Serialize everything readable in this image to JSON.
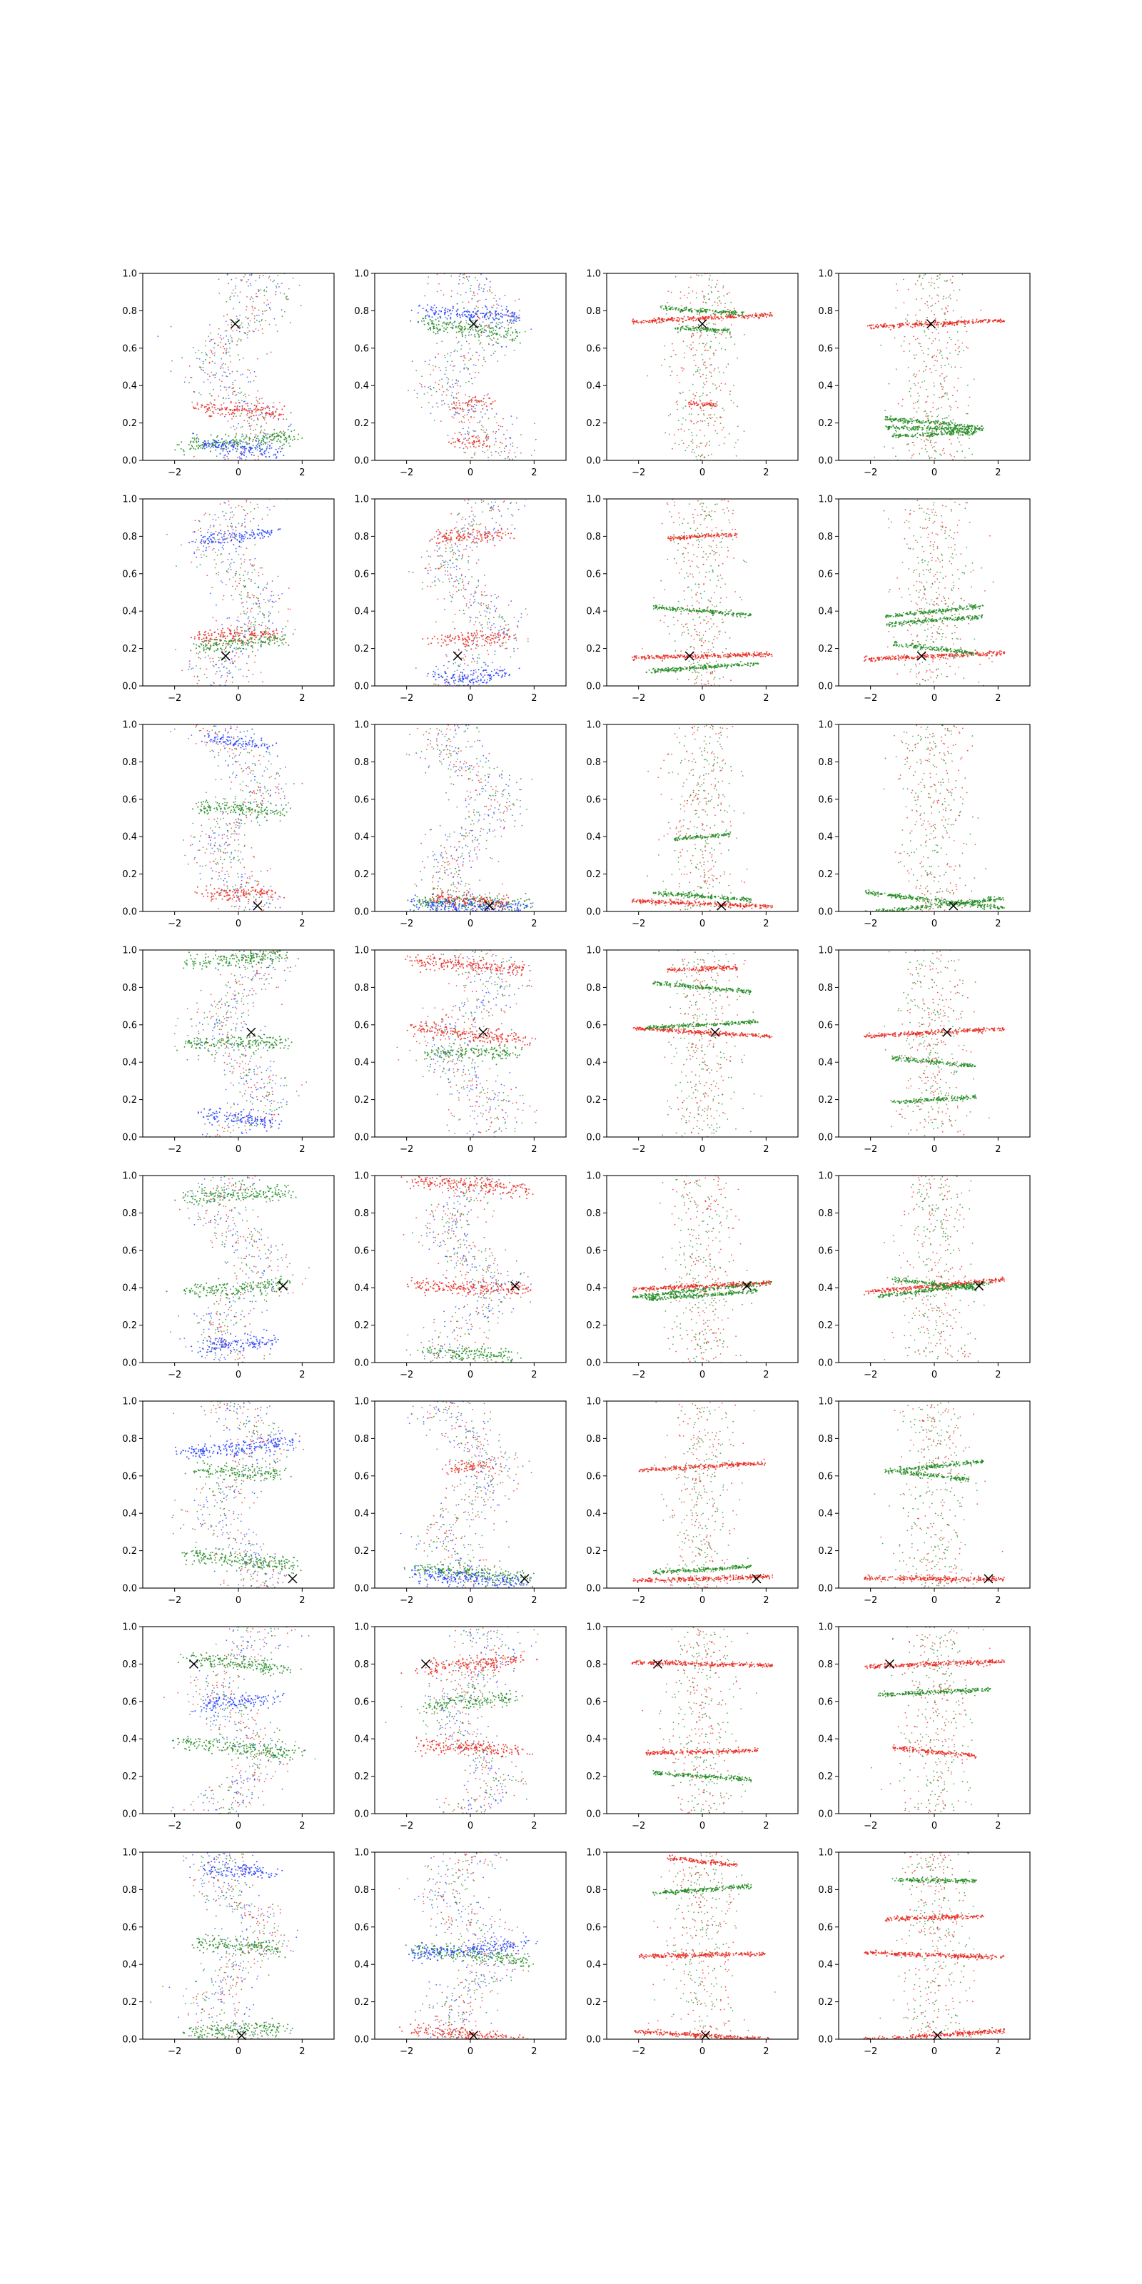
{
  "figure": {
    "rows": 8,
    "cols": 4,
    "colors": {
      "red": "#e8261c",
      "green": "#1f8a1f",
      "blue": "#1f3cff",
      "marker": "#000000"
    }
  },
  "chart_data": {
    "type": "scatter",
    "xlim": [
      -3,
      3
    ],
    "ylim": [
      0,
      1
    ],
    "x_ticks": [
      -2,
      0,
      2
    ],
    "y_ticks": [
      0.0,
      0.2,
      0.4,
      0.6,
      0.8,
      1.0
    ],
    "x_tick_labels": [
      "−2",
      "0",
      "2"
    ],
    "y_tick_labels": [
      "0.0",
      "0.2",
      "0.4",
      "0.6",
      "0.8",
      "1.0"
    ],
    "grid": false,
    "legend": "none",
    "panels": [
      {
        "row": 0,
        "col": 0,
        "kind": "spread",
        "marker": [
          -0.1,
          0.73
        ],
        "bands": [
          [
            0.27,
            0.6,
            "red"
          ],
          [
            0.1,
            0.8,
            "green"
          ],
          [
            0.07,
            0.55,
            "blue"
          ]
        ]
      },
      {
        "row": 0,
        "col": 1,
        "kind": "spread",
        "marker": [
          0.1,
          0.73
        ],
        "bands": [
          [
            0.78,
            0.7,
            "blue"
          ],
          [
            0.7,
            0.7,
            "green"
          ],
          [
            0.3,
            0.2,
            "red"
          ],
          [
            0.1,
            0.2,
            "red"
          ]
        ]
      },
      {
        "row": 0,
        "col": 2,
        "kind": "stripes",
        "marker": [
          0.0,
          0.73
        ],
        "bands": [
          [
            0.76,
            1.0,
            "red"
          ],
          [
            0.8,
            0.6,
            "green"
          ],
          [
            0.7,
            0.4,
            "green"
          ],
          [
            0.3,
            0.2,
            "red"
          ]
        ]
      },
      {
        "row": 0,
        "col": 3,
        "kind": "stripes",
        "marker": [
          -0.1,
          0.73
        ],
        "bands": [
          [
            0.73,
            1.0,
            "red"
          ],
          [
            0.2,
            0.7,
            "green"
          ],
          [
            0.17,
            0.7,
            "green"
          ],
          [
            0.14,
            0.6,
            "green"
          ]
        ]
      },
      {
        "row": 1,
        "col": 0,
        "kind": "spread",
        "marker": [
          -0.4,
          0.16
        ],
        "bands": [
          [
            0.27,
            0.6,
            "red"
          ],
          [
            0.23,
            0.6,
            "green"
          ],
          [
            0.8,
            0.5,
            "blue"
          ]
        ]
      },
      {
        "row": 1,
        "col": 1,
        "kind": "spread",
        "marker": [
          -0.4,
          0.16
        ],
        "bands": [
          [
            0.8,
            0.5,
            "red"
          ],
          [
            0.25,
            0.5,
            "red"
          ],
          [
            0.05,
            0.5,
            "blue"
          ]
        ]
      },
      {
        "row": 1,
        "col": 2,
        "kind": "stripes",
        "marker": [
          -0.4,
          0.16
        ],
        "bands": [
          [
            0.16,
            1.0,
            "red"
          ],
          [
            0.1,
            0.8,
            "green"
          ],
          [
            0.4,
            0.7,
            "green"
          ],
          [
            0.8,
            0.5,
            "red"
          ]
        ]
      },
      {
        "row": 1,
        "col": 3,
        "kind": "stripes",
        "marker": [
          -0.4,
          0.16
        ],
        "bands": [
          [
            0.16,
            1.0,
            "red"
          ],
          [
            0.35,
            0.7,
            "green"
          ],
          [
            0.4,
            0.7,
            "green"
          ],
          [
            0.2,
            0.6,
            "green"
          ]
        ]
      },
      {
        "row": 2,
        "col": 0,
        "kind": "spread",
        "marker": [
          0.6,
          0.03
        ],
        "bands": [
          [
            0.55,
            0.6,
            "green"
          ],
          [
            0.1,
            0.5,
            "red"
          ],
          [
            0.9,
            0.4,
            "blue"
          ]
        ]
      },
      {
        "row": 2,
        "col": 1,
        "kind": "spread",
        "marker": [
          0.6,
          0.03
        ],
        "bands": [
          [
            0.05,
            0.8,
            "green"
          ],
          [
            0.03,
            0.8,
            "blue"
          ],
          [
            0.06,
            0.5,
            "red"
          ]
        ]
      },
      {
        "row": 2,
        "col": 2,
        "kind": "stripes",
        "marker": [
          0.6,
          0.03
        ],
        "bands": [
          [
            0.04,
            1.0,
            "red"
          ],
          [
            0.08,
            0.7,
            "green"
          ],
          [
            0.4,
            0.4,
            "green"
          ]
        ]
      },
      {
        "row": 2,
        "col": 3,
        "kind": "stripes",
        "marker": [
          0.6,
          0.03
        ],
        "bands": [
          [
            0.06,
            1.0,
            "green"
          ],
          [
            0.03,
            1.0,
            "green"
          ]
        ]
      },
      {
        "row": 3,
        "col": 0,
        "kind": "spread",
        "marker": [
          0.4,
          0.56
        ],
        "bands": [
          [
            0.95,
            0.7,
            "green"
          ],
          [
            0.5,
            0.7,
            "green"
          ],
          [
            0.1,
            0.5,
            "blue"
          ]
        ]
      },
      {
        "row": 3,
        "col": 1,
        "kind": "spread",
        "marker": [
          0.4,
          0.56
        ],
        "bands": [
          [
            0.92,
            0.8,
            "red"
          ],
          [
            0.55,
            0.8,
            "red"
          ],
          [
            0.45,
            0.6,
            "green"
          ]
        ]
      },
      {
        "row": 3,
        "col": 2,
        "kind": "stripes",
        "marker": [
          0.4,
          0.56
        ],
        "bands": [
          [
            0.56,
            1.0,
            "red"
          ],
          [
            0.6,
            0.8,
            "green"
          ],
          [
            0.8,
            0.7,
            "green"
          ],
          [
            0.9,
            0.5,
            "red"
          ]
        ]
      },
      {
        "row": 3,
        "col": 3,
        "kind": "stripes",
        "marker": [
          0.4,
          0.56
        ],
        "bands": [
          [
            0.56,
            1.0,
            "red"
          ],
          [
            0.4,
            0.6,
            "green"
          ],
          [
            0.2,
            0.6,
            "green"
          ]
        ]
      },
      {
        "row": 4,
        "col": 0,
        "kind": "spread",
        "marker": [
          1.4,
          0.41
        ],
        "bands": [
          [
            0.4,
            0.7,
            "green"
          ],
          [
            0.9,
            0.7,
            "green"
          ],
          [
            0.1,
            0.5,
            "blue"
          ]
        ]
      },
      {
        "row": 4,
        "col": 1,
        "kind": "spread",
        "marker": [
          1.4,
          0.41
        ],
        "bands": [
          [
            0.95,
            0.8,
            "red"
          ],
          [
            0.4,
            0.8,
            "red"
          ],
          [
            0.05,
            0.6,
            "green"
          ]
        ]
      },
      {
        "row": 4,
        "col": 2,
        "kind": "stripes",
        "marker": [
          1.4,
          0.41
        ],
        "bands": [
          [
            0.39,
            1.0,
            "green"
          ],
          [
            0.41,
            1.0,
            "red"
          ],
          [
            0.36,
            0.8,
            "green"
          ]
        ]
      },
      {
        "row": 4,
        "col": 3,
        "kind": "stripes",
        "marker": [
          1.4,
          0.41
        ],
        "bands": [
          [
            0.41,
            1.0,
            "red"
          ],
          [
            0.39,
            0.8,
            "green"
          ],
          [
            0.42,
            0.6,
            "green"
          ]
        ]
      },
      {
        "row": 5,
        "col": 0,
        "kind": "spread",
        "marker": [
          1.7,
          0.05
        ],
        "bands": [
          [
            0.75,
            0.8,
            "blue"
          ],
          [
            0.15,
            0.8,
            "green"
          ],
          [
            0.62,
            0.6,
            "green"
          ]
        ]
      },
      {
        "row": 5,
        "col": 1,
        "kind": "spread",
        "marker": [
          1.7,
          0.05
        ],
        "bands": [
          [
            0.08,
            0.8,
            "green"
          ],
          [
            0.05,
            0.8,
            "blue"
          ],
          [
            0.65,
            0.3,
            "red"
          ]
        ]
      },
      {
        "row": 5,
        "col": 2,
        "kind": "stripes",
        "marker": [
          1.7,
          0.05
        ],
        "bands": [
          [
            0.05,
            1.0,
            "red"
          ],
          [
            0.65,
            0.9,
            "red"
          ],
          [
            0.1,
            0.7,
            "green"
          ]
        ]
      },
      {
        "row": 5,
        "col": 3,
        "kind": "stripes",
        "marker": [
          1.7,
          0.05
        ],
        "bands": [
          [
            0.05,
            1.0,
            "red"
          ],
          [
            0.65,
            0.7,
            "green"
          ],
          [
            0.6,
            0.5,
            "green"
          ]
        ]
      },
      {
        "row": 6,
        "col": 0,
        "kind": "spread",
        "marker": [
          -1.4,
          0.8
        ],
        "bands": [
          [
            0.35,
            0.8,
            "green"
          ],
          [
            0.8,
            0.7,
            "green"
          ],
          [
            0.6,
            0.5,
            "blue"
          ]
        ]
      },
      {
        "row": 6,
        "col": 1,
        "kind": "spread",
        "marker": [
          -1.4,
          0.8
        ],
        "bands": [
          [
            0.8,
            0.7,
            "red"
          ],
          [
            0.35,
            0.7,
            "red"
          ],
          [
            0.6,
            0.6,
            "green"
          ]
        ]
      },
      {
        "row": 6,
        "col": 2,
        "kind": "stripes",
        "marker": [
          -1.4,
          0.8
        ],
        "bands": [
          [
            0.8,
            1.0,
            "red"
          ],
          [
            0.33,
            0.8,
            "red"
          ],
          [
            0.2,
            0.7,
            "green"
          ]
        ]
      },
      {
        "row": 6,
        "col": 3,
        "kind": "stripes",
        "marker": [
          -1.4,
          0.8
        ],
        "bands": [
          [
            0.8,
            1.0,
            "red"
          ],
          [
            0.65,
            0.8,
            "green"
          ],
          [
            0.33,
            0.6,
            "red"
          ]
        ]
      },
      {
        "row": 7,
        "col": 0,
        "kind": "spread",
        "marker": [
          0.1,
          0.02
        ],
        "bands": [
          [
            0.05,
            0.7,
            "green"
          ],
          [
            0.5,
            0.6,
            "green"
          ],
          [
            0.9,
            0.5,
            "blue"
          ]
        ]
      },
      {
        "row": 7,
        "col": 1,
        "kind": "spread",
        "marker": [
          0.1,
          0.02
        ],
        "bands": [
          [
            0.45,
            0.8,
            "green"
          ],
          [
            0.48,
            0.8,
            "blue"
          ],
          [
            0.02,
            0.8,
            "red"
          ]
        ]
      },
      {
        "row": 7,
        "col": 2,
        "kind": "stripes",
        "marker": [
          0.1,
          0.02
        ],
        "bands": [
          [
            0.02,
            1.0,
            "red"
          ],
          [
            0.45,
            0.9,
            "red"
          ],
          [
            0.95,
            0.5,
            "red"
          ],
          [
            0.8,
            0.7,
            "green"
          ]
        ]
      },
      {
        "row": 7,
        "col": 3,
        "kind": "stripes",
        "marker": [
          0.1,
          0.02
        ],
        "bands": [
          [
            0.02,
            1.0,
            "red"
          ],
          [
            0.45,
            1.0,
            "red"
          ],
          [
            0.65,
            0.7,
            "red"
          ],
          [
            0.85,
            0.6,
            "green"
          ]
        ]
      }
    ]
  }
}
